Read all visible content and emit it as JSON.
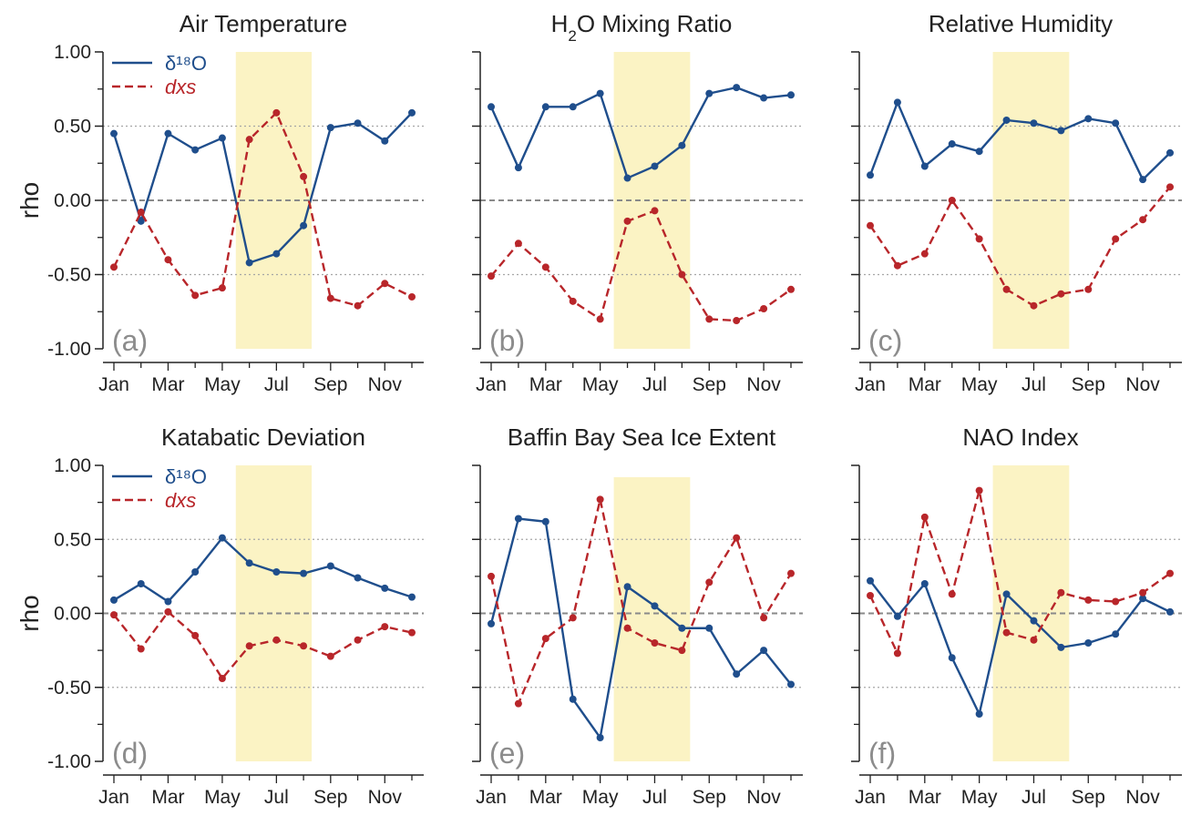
{
  "colors": {
    "d18o": "#1f4e8c",
    "dxs": "#b8262a",
    "summer_band": "#fbf3c4",
    "zero_line": "#8a8a8a",
    "half_grid": "#a6a6a6",
    "axis": "#222222",
    "panel_tag": "#8c8c8c"
  },
  "legend": {
    "d18o_label": "δ¹⁸O",
    "dxs_label": "dxs"
  },
  "chart_data": [
    {
      "type": "line",
      "title": "Air Temperature",
      "panel": "(a)",
      "ylabel": "rho",
      "ylim": [
        -1,
        1
      ],
      "yticks": [
        1,
        0.5,
        0,
        -0.5,
        -1
      ],
      "yticklabels": [
        "1.00",
        "0.50",
        "0.00",
        "-0.50",
        "-1.00"
      ],
      "x": [
        1,
        2,
        3,
        4,
        5,
        6,
        7,
        8,
        9,
        10,
        11,
        12
      ],
      "xticks": [
        1,
        3,
        5,
        7,
        9,
        11
      ],
      "xticklabels": [
        "Jan",
        "Mar",
        "May",
        "Jul",
        "Sep",
        "Nov"
      ],
      "shade": [
        5.5,
        8.3
      ],
      "legend": "top-left",
      "series": [
        {
          "name": "δ¹⁸O",
          "key": "d18o",
          "values": [
            0.45,
            -0.14,
            0.45,
            0.34,
            0.42,
            -0.42,
            -0.36,
            -0.17,
            0.49,
            0.52,
            0.4,
            0.59
          ]
        },
        {
          "name": "dxs",
          "key": "dxs",
          "values": [
            -0.45,
            -0.08,
            -0.4,
            -0.64,
            -0.59,
            0.41,
            0.59,
            0.16,
            -0.66,
            -0.71,
            -0.56,
            -0.65
          ]
        }
      ]
    },
    {
      "type": "line",
      "title": "H₂O Mixing Ratio",
      "panel": "(b)",
      "ylim": [
        -1,
        1
      ],
      "yticks": [
        1,
        0.5,
        0,
        -0.5,
        -1
      ],
      "x": [
        1,
        2,
        3,
        4,
        5,
        6,
        7,
        8,
        9,
        10,
        11,
        12
      ],
      "xticks": [
        1,
        3,
        5,
        7,
        9,
        11
      ],
      "xticklabels": [
        "Jan",
        "Mar",
        "May",
        "Jul",
        "Sep",
        "Nov"
      ],
      "shade": [
        5.5,
        8.3
      ],
      "series": [
        {
          "key": "d18o",
          "values": [
            0.63,
            0.22,
            0.63,
            0.63,
            0.72,
            0.15,
            0.23,
            0.37,
            0.72,
            0.76,
            0.69,
            0.71
          ]
        },
        {
          "key": "dxs",
          "values": [
            -0.51,
            -0.29,
            -0.45,
            -0.68,
            -0.8,
            -0.14,
            -0.07,
            -0.5,
            -0.8,
            -0.81,
            -0.73,
            -0.6
          ]
        }
      ]
    },
    {
      "type": "line",
      "title": "Relative Humidity",
      "panel": "(c)",
      "ylim": [
        -1,
        1
      ],
      "yticks": [
        1,
        0.5,
        0,
        -0.5,
        -1
      ],
      "x": [
        1,
        2,
        3,
        4,
        5,
        6,
        7,
        8,
        9,
        10,
        11,
        12
      ],
      "xticks": [
        1,
        3,
        5,
        7,
        9,
        11
      ],
      "xticklabels": [
        "Jan",
        "Mar",
        "May",
        "Jul",
        "Sep",
        "Nov"
      ],
      "shade": [
        5.5,
        8.3
      ],
      "series": [
        {
          "key": "d18o",
          "values": [
            0.17,
            0.66,
            0.23,
            0.38,
            0.33,
            0.54,
            0.52,
            0.47,
            0.55,
            0.52,
            0.14,
            0.32
          ]
        },
        {
          "key": "dxs",
          "values": [
            -0.17,
            -0.44,
            -0.36,
            0.0,
            -0.26,
            -0.6,
            -0.71,
            -0.63,
            -0.6,
            -0.26,
            -0.13,
            0.09
          ]
        }
      ]
    },
    {
      "type": "line",
      "title": "Katabatic Deviation",
      "panel": "(d)",
      "ylabel": "rho",
      "ylim": [
        -1,
        1
      ],
      "yticks": [
        1,
        0.5,
        0,
        -0.5,
        -1
      ],
      "yticklabels": [
        "1.00",
        "0.50",
        "0.00",
        "-0.50",
        "-1.00"
      ],
      "x": [
        1,
        2,
        3,
        4,
        5,
        6,
        7,
        8,
        9,
        10,
        11,
        12
      ],
      "xticks": [
        1,
        3,
        5,
        7,
        9,
        11
      ],
      "xticklabels": [
        "Jan",
        "Mar",
        "May",
        "Jul",
        "Sep",
        "Nov"
      ],
      "shade": [
        5.5,
        8.3
      ],
      "legend": "top-left",
      "series": [
        {
          "name": "δ¹⁸O",
          "key": "d18o",
          "values": [
            0.09,
            0.2,
            0.08,
            0.28,
            0.51,
            0.34,
            0.28,
            0.27,
            0.32,
            0.24,
            0.17,
            0.11
          ]
        },
        {
          "name": "dxs",
          "key": "dxs",
          "values": [
            -0.01,
            -0.24,
            0.01,
            -0.15,
            -0.44,
            -0.22,
            -0.18,
            -0.22,
            -0.29,
            -0.18,
            -0.09,
            -0.13
          ]
        }
      ]
    },
    {
      "type": "line",
      "title": "Baffin Bay Sea Ice Extent",
      "panel": "(e)",
      "ylim": [
        -1,
        1
      ],
      "yticks": [
        1,
        0.5,
        0,
        -0.5,
        -1
      ],
      "x": [
        1,
        2,
        3,
        4,
        5,
        6,
        7,
        8,
        9,
        10,
        11,
        12
      ],
      "xticks": [
        1,
        3,
        5,
        7,
        9,
        11
      ],
      "xticklabels": [
        "Jan",
        "Mar",
        "May",
        "Jul",
        "Sep",
        "Nov"
      ],
      "shade": [
        5.5,
        8.3
      ],
      "shade_ylim": [
        -1,
        0.92
      ],
      "series": [
        {
          "key": "d18o",
          "values": [
            -0.07,
            0.64,
            0.62,
            -0.58,
            -0.84,
            0.18,
            0.05,
            -0.1,
            -0.1,
            -0.41,
            -0.25,
            -0.48
          ]
        },
        {
          "key": "dxs",
          "values": [
            0.25,
            -0.61,
            -0.17,
            -0.03,
            0.77,
            -0.1,
            -0.2,
            -0.25,
            0.21,
            0.51,
            -0.03,
            0.27
          ]
        }
      ]
    },
    {
      "type": "line",
      "title": "NAO Index",
      "panel": "(f)",
      "ylim": [
        -1,
        1
      ],
      "yticks": [
        1,
        0.5,
        0,
        -0.5,
        -1
      ],
      "x": [
        1,
        2,
        3,
        4,
        5,
        6,
        7,
        8,
        9,
        10,
        11,
        12
      ],
      "xticks": [
        1,
        3,
        5,
        7,
        9,
        11
      ],
      "xticklabels": [
        "Jan",
        "Mar",
        "May",
        "Jul",
        "Sep",
        "Nov"
      ],
      "shade": [
        5.5,
        8.3
      ],
      "series": [
        {
          "key": "d18o",
          "values": [
            0.22,
            -0.02,
            0.2,
            -0.3,
            -0.68,
            0.13,
            -0.05,
            -0.23,
            -0.2,
            -0.14,
            0.1,
            0.01
          ]
        },
        {
          "key": "dxs",
          "values": [
            0.12,
            -0.27,
            0.65,
            0.13,
            0.83,
            -0.13,
            -0.18,
            0.14,
            0.09,
            0.08,
            0.14,
            0.27
          ]
        }
      ]
    }
  ]
}
